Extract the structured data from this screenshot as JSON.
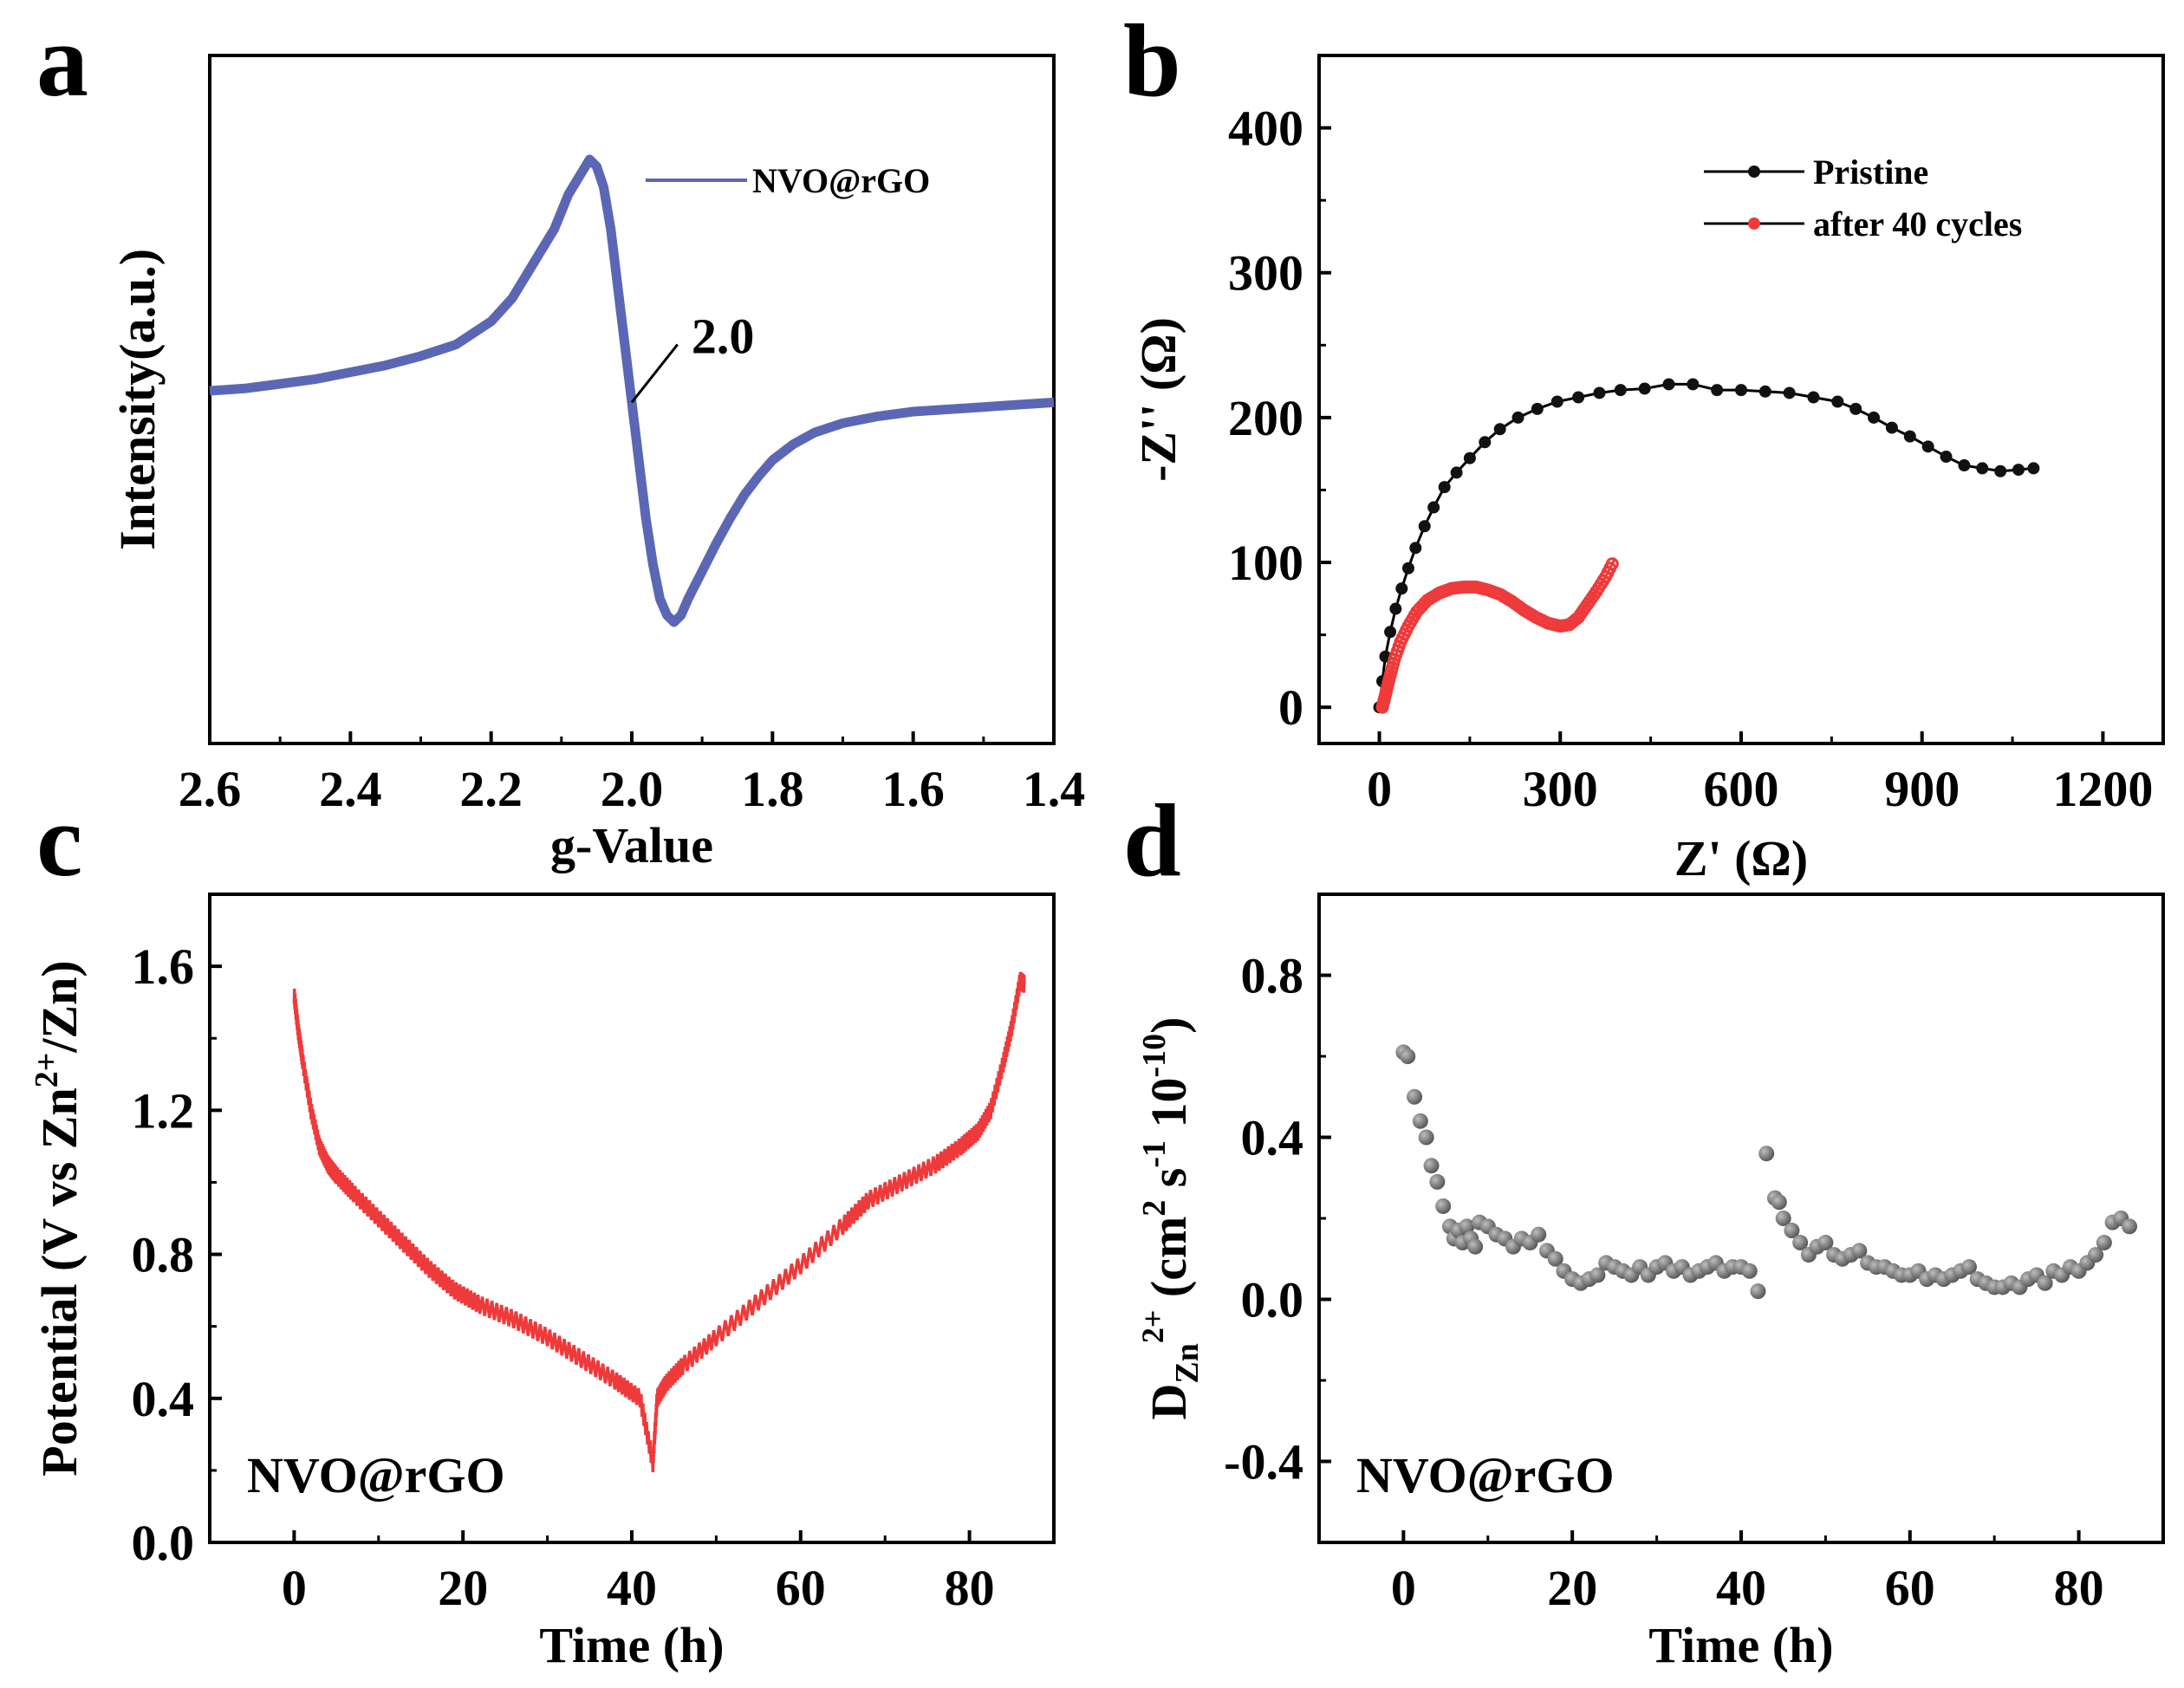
{
  "chart_data": [
    {
      "panel": "a",
      "type": "line",
      "title": "",
      "xlabel": "g-Value",
      "ylabel": "Intensity(a.u.)",
      "xlim": [
        2.6,
        1.4
      ],
      "x_reversed": true,
      "ylim": [
        -1.0,
        1.0
      ],
      "xticks": [
        "2.6",
        "2.4",
        "2.2",
        "2.0",
        "1.8",
        "1.6",
        "1.4"
      ],
      "yticks": [],
      "grid": false,
      "legend_position": "top-right",
      "annotation": "2.0",
      "series": [
        {
          "name": "NVO@rGO",
          "color": "#5b67b4",
          "x": [
            2.6,
            2.55,
            2.5,
            2.45,
            2.4,
            2.35,
            2.3,
            2.25,
            2.2,
            2.17,
            2.14,
            2.11,
            2.09,
            2.07,
            2.06,
            2.05,
            2.04,
            2.03,
            2.02,
            2.01,
            2.0,
            1.99,
            1.98,
            1.97,
            1.96,
            1.95,
            1.94,
            1.93,
            1.92,
            1.9,
            1.88,
            1.86,
            1.84,
            1.82,
            1.8,
            1.77,
            1.74,
            1.7,
            1.65,
            1.6,
            1.55,
            1.5,
            1.45,
            1.4
          ],
          "y": [
            0.0,
            0.01,
            0.03,
            0.05,
            0.08,
            0.11,
            0.15,
            0.2,
            0.3,
            0.4,
            0.55,
            0.7,
            0.85,
            0.95,
            1.0,
            0.97,
            0.88,
            0.7,
            0.45,
            0.2,
            -0.05,
            -0.3,
            -0.55,
            -0.75,
            -0.9,
            -0.97,
            -1.0,
            -0.97,
            -0.9,
            -0.78,
            -0.66,
            -0.55,
            -0.45,
            -0.37,
            -0.3,
            -0.23,
            -0.18,
            -0.14,
            -0.11,
            -0.09,
            -0.08,
            -0.07,
            -0.06,
            -0.05
          ]
        }
      ]
    },
    {
      "panel": "b",
      "type": "line",
      "title": "",
      "xlabel": "Z' (Ω)",
      "ylabel": "-Z'' (Ω)",
      "xlim": [
        -100,
        1300
      ],
      "ylim": [
        -25,
        450
      ],
      "xticks": [
        "0",
        "300",
        "600",
        "900",
        "1200"
      ],
      "yticks": [
        "0",
        "100",
        "200",
        "300",
        "400"
      ],
      "grid": false,
      "legend_position": "top-right",
      "series": [
        {
          "name": "Pristine",
          "color": "#000000",
          "marker": "circle",
          "x": [
            0,
            5,
            10,
            18,
            27,
            37,
            48,
            60,
            75,
            90,
            108,
            128,
            150,
            175,
            200,
            230,
            262,
            295,
            330,
            365,
            400,
            440,
            480,
            520,
            560,
            600,
            640,
            680,
            720,
            760,
            790,
            820,
            850,
            880,
            910,
            940,
            970,
            1000,
            1030,
            1060,
            1085
          ],
          "y": [
            0,
            18,
            35,
            52,
            68,
            82,
            96,
            110,
            125,
            138,
            152,
            162,
            172,
            183,
            192,
            200,
            206,
            211,
            214,
            217,
            219,
            220,
            223,
            223,
            219,
            219,
            218,
            217,
            214,
            211,
            206,
            200,
            193,
            187,
            180,
            173,
            167,
            165,
            163,
            164,
            165
          ]
        },
        {
          "name": "after 40 cycles",
          "color": "#ee3a3a",
          "marker": "circle",
          "x": [
            5,
            8,
            12,
            18,
            25,
            35,
            48,
            62,
            80,
            100,
            120,
            140,
            160,
            180,
            200,
            220,
            240,
            260,
            280,
            300,
            315,
            330,
            345,
            360,
            375,
            390
          ],
          "y": [
            0,
            5,
            12,
            22,
            33,
            45,
            56,
            66,
            74,
            79,
            82,
            83,
            83,
            81,
            78,
            73,
            67,
            62,
            58,
            56,
            57,
            62,
            71,
            80,
            90,
            102
          ]
        }
      ]
    },
    {
      "panel": "c",
      "type": "line",
      "title": "",
      "xlabel": "Time (h)",
      "ylabel": "Potential (V vs Zn2+/Zn)",
      "ylabel_parts": [
        "Potential (V vs Zn",
        "2+",
        "/Zn)"
      ],
      "xlim": [
        -10,
        90
      ],
      "ylim": [
        0.0,
        1.8
      ],
      "xticks": [
        "0",
        "20",
        "40",
        "60",
        "80"
      ],
      "yticks": [
        "0.0",
        "0.4",
        "0.8",
        "1.2",
        "1.6"
      ],
      "grid": false,
      "annotation": "NVO@rGO",
      "series": [
        {
          "name": "NVO@rGO",
          "color": "#ee3a3a",
          "x": [
            0,
            0.5,
            1,
            2,
            3,
            4,
            5,
            7,
            10,
            13,
            16,
            19,
            22,
            26,
            30,
            34,
            38,
            41,
            42.5,
            43,
            44,
            46,
            50,
            55,
            60,
            65,
            68,
            72,
            76,
            79,
            81,
            82.5,
            84,
            85,
            86,
            86.5
          ],
          "y": [
            1.52,
            1.42,
            1.34,
            1.2,
            1.1,
            1.05,
            1.02,
            0.97,
            0.9,
            0.83,
            0.76,
            0.7,
            0.66,
            0.62,
            0.57,
            0.51,
            0.45,
            0.4,
            0.22,
            0.4,
            0.44,
            0.49,
            0.57,
            0.67,
            0.77,
            0.88,
            0.95,
            1.0,
            1.05,
            1.1,
            1.14,
            1.2,
            1.33,
            1.43,
            1.56,
            1.55
          ]
        }
      ]
    },
    {
      "panel": "d",
      "type": "scatter",
      "title": "",
      "xlabel": "Time (h)",
      "ylabel": "DZn2+ (cm2 s-1 10-10)",
      "ylabel_parts": [
        "D",
        "Zn",
        "2+",
        " (cm",
        "2",
        " s",
        "-1",
        " 10",
        "-10",
        ")"
      ],
      "xlim": [
        -10,
        90
      ],
      "ylim": [
        -0.6,
        1.0
      ],
      "xticks": [
        "0",
        "20",
        "40",
        "60",
        "80"
      ],
      "yticks": [
        "-0.4",
        "0.0",
        "0.4",
        "0.8"
      ],
      "grid": false,
      "annotation": "NVO@rGO",
      "series": [
        {
          "name": "NVO@rGO",
          "color": "#5a5a5a",
          "x": [
            0,
            0.5,
            1.3,
            2,
            2.7,
            3.3,
            4,
            4.7,
            5.5,
            6,
            6.5,
            7,
            7.5,
            8,
            8.5,
            9,
            10,
            11,
            12,
            13,
            14,
            15,
            16,
            17,
            18,
            19,
            20,
            21,
            22,
            23,
            24,
            25,
            26,
            27,
            28,
            29,
            30,
            31,
            32,
            33,
            34,
            35,
            36,
            37,
            38,
            39,
            40,
            41,
            42,
            43,
            44,
            44.5,
            45,
            46,
            47,
            48,
            49,
            50,
            51,
            52,
            53,
            54,
            55,
            56,
            57,
            58,
            59,
            60,
            61,
            62,
            63,
            64,
            65,
            66,
            67,
            68,
            69,
            70,
            71,
            72,
            73,
            74,
            75,
            76,
            77,
            78,
            79,
            80,
            81,
            82,
            83,
            84,
            85,
            86
          ],
          "y": [
            0.61,
            0.6,
            0.5,
            0.44,
            0.4,
            0.33,
            0.29,
            0.23,
            0.18,
            0.15,
            0.17,
            0.14,
            0.18,
            0.15,
            0.13,
            0.19,
            0.18,
            0.16,
            0.15,
            0.13,
            0.15,
            0.14,
            0.16,
            0.12,
            0.1,
            0.07,
            0.05,
            0.04,
            0.05,
            0.06,
            0.09,
            0.08,
            0.07,
            0.06,
            0.08,
            0.06,
            0.08,
            0.09,
            0.07,
            0.08,
            0.06,
            0.07,
            0.08,
            0.09,
            0.07,
            0.08,
            0.08,
            0.07,
            0.02,
            0.36,
            0.25,
            0.24,
            0.2,
            0.17,
            0.14,
            0.11,
            0.13,
            0.14,
            0.11,
            0.1,
            0.11,
            0.12,
            0.09,
            0.08,
            0.08,
            0.07,
            0.06,
            0.06,
            0.07,
            0.05,
            0.06,
            0.05,
            0.06,
            0.07,
            0.08,
            0.05,
            0.04,
            0.03,
            0.03,
            0.04,
            0.03,
            0.05,
            0.06,
            0.04,
            0.07,
            0.06,
            0.08,
            0.07,
            0.09,
            0.11,
            0.14,
            0.19,
            0.2,
            0.18
          ]
        }
      ]
    }
  ]
}
